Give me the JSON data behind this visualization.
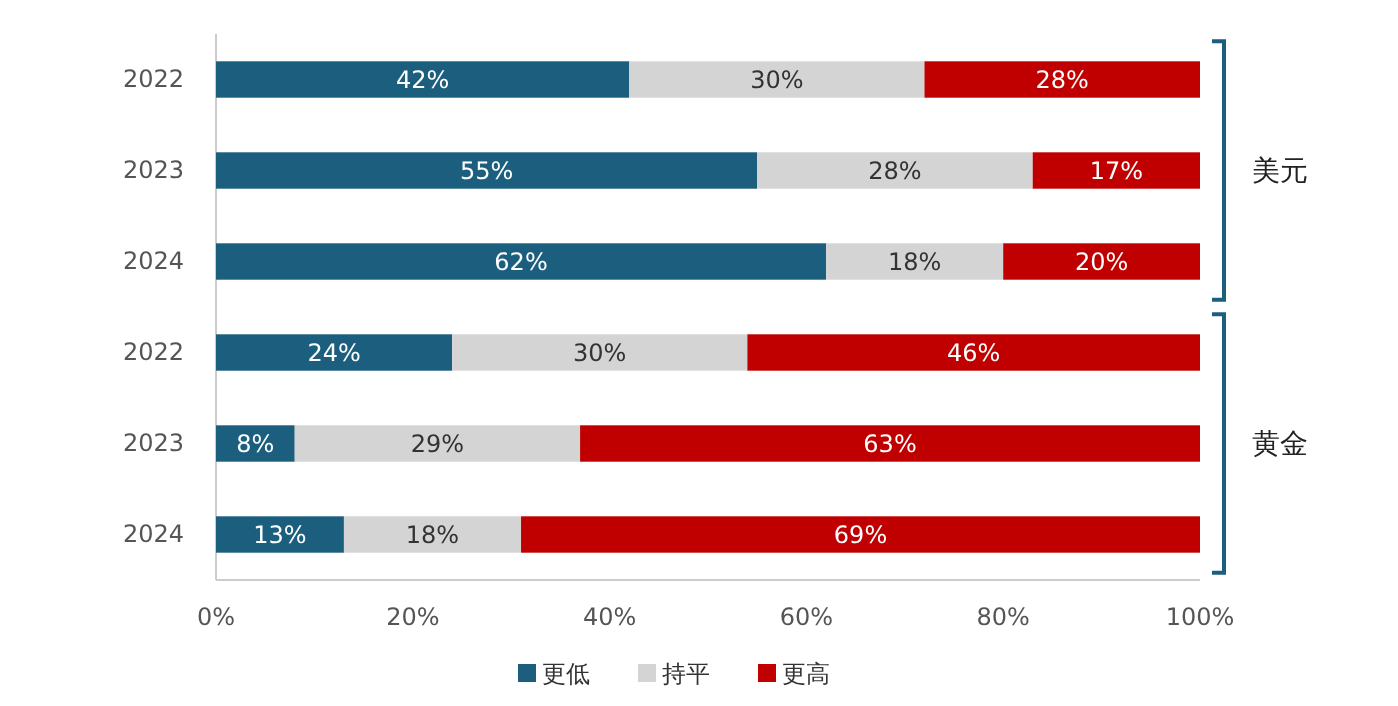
{
  "chart_data": {
    "type": "bar",
    "orientation": "horizontal",
    "stacked": true,
    "categories": [
      "2022",
      "2023",
      "2024",
      "2022",
      "2023",
      "2024"
    ],
    "series": [
      {
        "name": "更低",
        "color": "#1b5e7e",
        "values": [
          42,
          55,
          62,
          24,
          8,
          13
        ],
        "value_labels": [
          "42%",
          "55%",
          "62%",
          "24%",
          "8%",
          "13%"
        ]
      },
      {
        "name": "持平",
        "color": "#d4d4d4",
        "values": [
          30,
          28,
          18,
          30,
          29,
          18
        ],
        "value_labels": [
          "30%",
          "28%",
          "18%",
          "30%",
          "29%",
          "18%"
        ]
      },
      {
        "name": "更高",
        "color": "#c00000",
        "values": [
          28,
          17,
          20,
          46,
          63,
          69
        ],
        "value_labels": [
          "28%",
          "17%",
          "20%",
          "46%",
          "63%",
          "69%"
        ]
      }
    ],
    "xlim": [
      0,
      100
    ],
    "xticks": [
      {
        "value": 0,
        "label": "0%"
      },
      {
        "value": 20,
        "label": "20%"
      },
      {
        "value": 40,
        "label": "40%"
      },
      {
        "value": 60,
        "label": "60%"
      },
      {
        "value": 80,
        "label": "80%"
      },
      {
        "value": 100,
        "label": "100%"
      }
    ],
    "annotations": [
      "美元",
      "黄金"
    ],
    "legend": "bottom",
    "grid": false
  }
}
